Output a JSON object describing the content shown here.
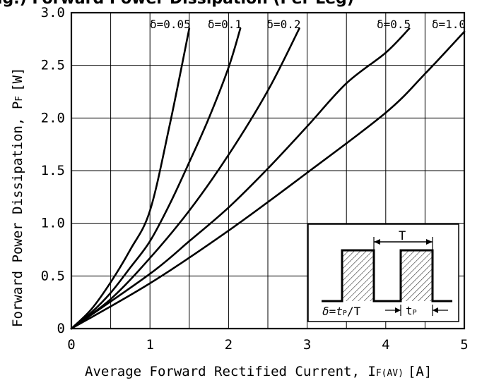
{
  "chart_data": {
    "type": "line",
    "title": "ig.) Forward Power Dissipation (Per Leg)",
    "xlabel": "Average Forward Rectified Current, I",
    "xlabel_sub": "F(AV)",
    "xlabel_unit": "[A]",
    "ylabel": "Forward Power Dissipation, P",
    "ylabel_sub": "F",
    "ylabel_unit": "[W]",
    "xlim": [
      0,
      5
    ],
    "ylim": [
      0,
      3.0
    ],
    "x_ticks": [
      "0",
      "1",
      "2",
      "3",
      "4",
      "5"
    ],
    "y_ticks": [
      "0",
      "0.5",
      "1.0",
      "1.5",
      "2.0",
      "2.5",
      "3.0"
    ],
    "x_tick_values": [
      0,
      1,
      2,
      3,
      4,
      5
    ],
    "y_tick_values": [
      0,
      0.5,
      1.0,
      1.5,
      2.0,
      2.5,
      3.0
    ],
    "x_grid": [
      0.5,
      1,
      1.5,
      2,
      2.5,
      3,
      3.5,
      4,
      4.5
    ],
    "y_grid": [
      0.5,
      1.0,
      1.5,
      2.0,
      2.5
    ],
    "grid": true,
    "series": [
      {
        "name": "δ=0.05",
        "x": [
          0,
          0.25,
          0.5,
          0.75,
          1.0,
          1.25,
          1.5
        ],
        "y": [
          0,
          0.18,
          0.44,
          0.75,
          1.12,
          1.93,
          2.85
        ]
      },
      {
        "name": "δ=0.1",
        "x": [
          0,
          0.25,
          0.5,
          0.75,
          1.0,
          1.25,
          1.5,
          1.75,
          2.0,
          2.15
        ],
        "y": [
          0,
          0.15,
          0.34,
          0.58,
          0.83,
          1.18,
          1.58,
          2.0,
          2.48,
          2.85
        ]
      },
      {
        "name": "δ=0.2",
        "x": [
          0,
          0.5,
          1.0,
          1.5,
          2.0,
          2.5,
          2.9
        ],
        "y": [
          0,
          0.28,
          0.67,
          1.12,
          1.65,
          2.26,
          2.85
        ]
      },
      {
        "name": "δ=0.5",
        "x": [
          0,
          1.0,
          1.5,
          2.0,
          2.5,
          3.0,
          3.5,
          4.0,
          4.3
        ],
        "y": [
          0,
          0.52,
          0.83,
          1.15,
          1.52,
          1.92,
          2.33,
          2.62,
          2.85
        ]
      },
      {
        "name": "δ=1.0",
        "x": [
          0,
          1.0,
          2.0,
          3.0,
          4.0,
          4.5,
          5.0
        ],
        "y": [
          0,
          0.43,
          0.93,
          1.48,
          2.05,
          2.42,
          2.82
        ]
      }
    ],
    "series_labels": [
      "δ=0.05",
      "δ=0.1",
      "δ=0.2",
      "δ=0.5",
      "δ=1.0"
    ],
    "inset": {
      "period_label": "T",
      "formula_label": "δ=t",
      "formula_sub": "P",
      "formula_tail": "/T",
      "pulse_label": "t",
      "pulse_sub": "P"
    },
    "colors": {
      "line": "#000000",
      "grid": "#000000",
      "background": "#ffffff"
    }
  }
}
